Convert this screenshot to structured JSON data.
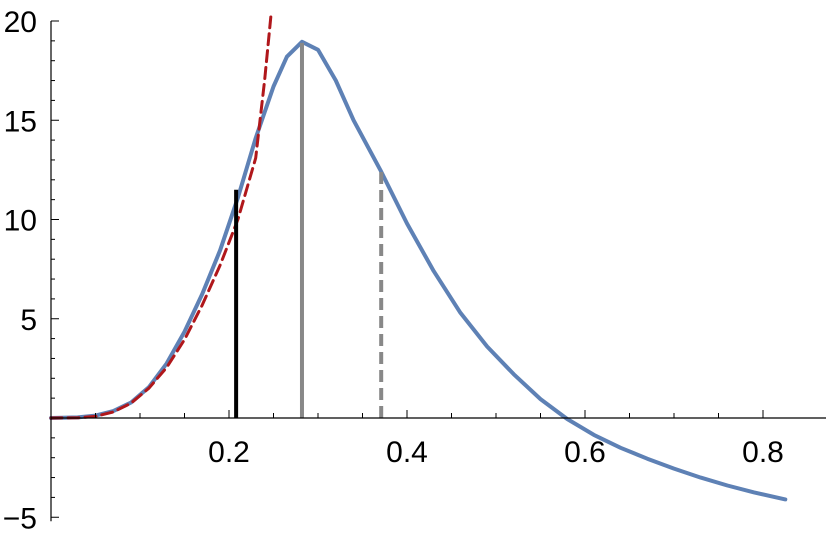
{
  "chart_data": {
    "type": "line",
    "title": "",
    "xlabel": "",
    "ylabel": "",
    "xlim": [
      0,
      0.84
    ],
    "ylim": [
      -5,
      20
    ],
    "x_ticks": [
      {
        "value": 0.2,
        "label": "0.2"
      },
      {
        "value": 0.4,
        "label": "0.4"
      },
      {
        "value": 0.6,
        "label": "0.6"
      },
      {
        "value": 0.8,
        "label": "0.8"
      }
    ],
    "y_ticks": [
      {
        "value": -5,
        "label": "−5"
      },
      {
        "value": 5,
        "label": "5"
      },
      {
        "value": 10,
        "label": "10"
      },
      {
        "value": 15,
        "label": "15"
      },
      {
        "value": 20,
        "label": "20"
      }
    ],
    "x_minor_step": 0.05,
    "y_minor_step": 1,
    "grid": false,
    "series": [
      {
        "style": "solid",
        "color": "#5e81b5",
        "points": [
          [
            0.0,
            0.0
          ],
          [
            0.03,
            0.03
          ],
          [
            0.05,
            0.12
          ],
          [
            0.07,
            0.35
          ],
          [
            0.09,
            0.78
          ],
          [
            0.11,
            1.55
          ],
          [
            0.13,
            2.75
          ],
          [
            0.15,
            4.35
          ],
          [
            0.17,
            6.25
          ],
          [
            0.19,
            8.45
          ],
          [
            0.21,
            11.1
          ],
          [
            0.23,
            14.1
          ],
          [
            0.25,
            16.7
          ],
          [
            0.265,
            18.2
          ],
          [
            0.282,
            18.95
          ],
          [
            0.3,
            18.55
          ],
          [
            0.32,
            17.0
          ],
          [
            0.34,
            15.0
          ],
          [
            0.37,
            12.5
          ],
          [
            0.4,
            9.8
          ],
          [
            0.43,
            7.4
          ],
          [
            0.46,
            5.3
          ],
          [
            0.49,
            3.6
          ],
          [
            0.52,
            2.2
          ],
          [
            0.55,
            0.95
          ],
          [
            0.58,
            -0.05
          ],
          [
            0.61,
            -0.85
          ],
          [
            0.64,
            -1.5
          ],
          [
            0.67,
            -2.05
          ],
          [
            0.7,
            -2.55
          ],
          [
            0.73,
            -3.0
          ],
          [
            0.76,
            -3.4
          ],
          [
            0.79,
            -3.75
          ],
          [
            0.825,
            -4.1
          ]
        ]
      },
      {
        "style": "dashed",
        "color": "#b0171b",
        "points": [
          [
            0.0,
            0.0
          ],
          [
            0.03,
            0.01
          ],
          [
            0.05,
            0.08
          ],
          [
            0.07,
            0.3
          ],
          [
            0.09,
            0.75
          ],
          [
            0.11,
            1.5
          ],
          [
            0.13,
            2.55
          ],
          [
            0.15,
            3.95
          ],
          [
            0.17,
            5.7
          ],
          [
            0.19,
            7.7
          ],
          [
            0.21,
            10.0
          ],
          [
            0.23,
            13.1
          ],
          [
            0.24,
            17.0
          ],
          [
            0.247,
            20.2
          ]
        ]
      }
    ],
    "vertical_lines": [
      {
        "x": 0.208,
        "y": 11.5,
        "color": "#000000",
        "style": "solid"
      },
      {
        "x": 0.282,
        "y": 18.9,
        "color": "#888888",
        "style": "solid"
      },
      {
        "x": 0.371,
        "y": 12.5,
        "color": "#888888",
        "style": "dashed"
      }
    ]
  }
}
